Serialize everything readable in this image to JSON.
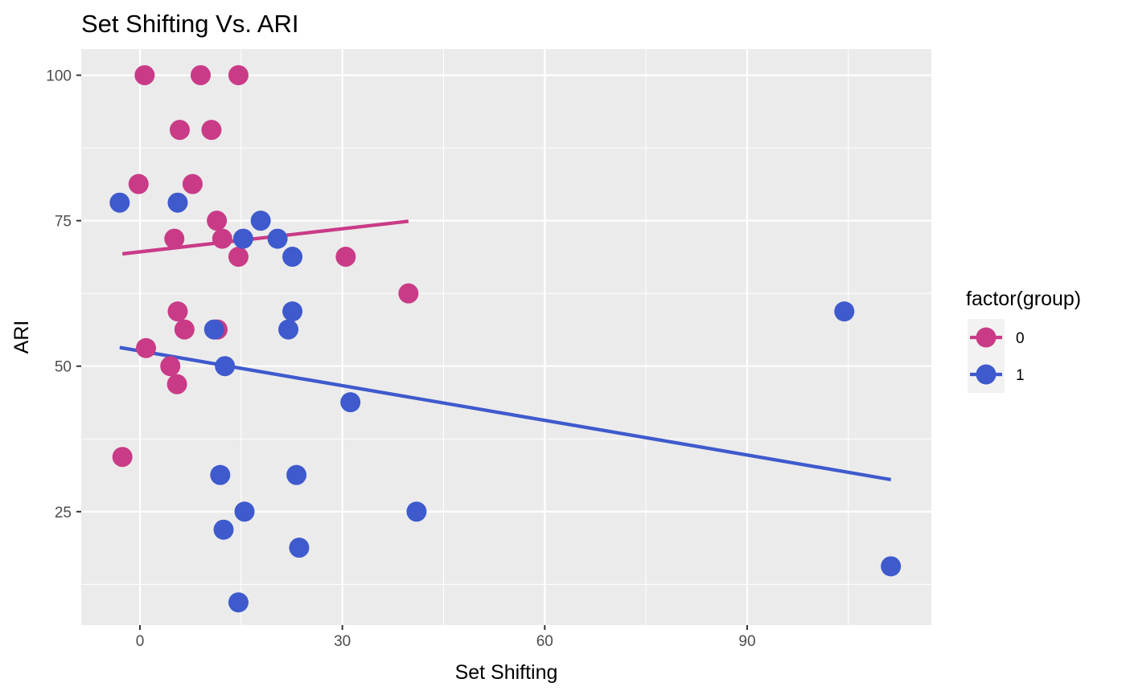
{
  "chart_data": {
    "type": "scatter",
    "title": "Set Shifting Vs. ARI",
    "xlabel": "Set Shifting",
    "ylabel": "ARI",
    "xlim": [
      -8.7,
      117.3
    ],
    "ylim": [
      5.5,
      104.5
    ],
    "x_ticks": [
      0,
      30,
      60,
      90
    ],
    "x_tick_labels": [
      "0",
      "30",
      "60",
      "90"
    ],
    "x_minor_ticks": [
      15,
      45,
      75,
      105
    ],
    "y_ticks": [
      25,
      50,
      75,
      100
    ],
    "y_tick_labels": [
      "25",
      "50",
      "75",
      "100"
    ],
    "y_minor_ticks": [
      12.5,
      37.5,
      62.5,
      87.5
    ],
    "grid": true,
    "legend": {
      "title": "factor(group)",
      "position": "right"
    },
    "series": [
      {
        "name": "0",
        "color": "#c93b87",
        "points": [
          {
            "x": 0.7,
            "y": 100
          },
          {
            "x": 9.0,
            "y": 100
          },
          {
            "x": 14.6,
            "y": 100
          },
          {
            "x": 5.9,
            "y": 90.6
          },
          {
            "x": 10.6,
            "y": 90.6
          },
          {
            "x": -0.2,
            "y": 81.3
          },
          {
            "x": 7.8,
            "y": 81.3
          },
          {
            "x": 11.4,
            "y": 75
          },
          {
            "x": 5.1,
            "y": 71.9
          },
          {
            "x": 12.2,
            "y": 71.9
          },
          {
            "x": 14.6,
            "y": 68.8
          },
          {
            "x": 30.5,
            "y": 68.8
          },
          {
            "x": 39.8,
            "y": 62.5
          },
          {
            "x": 5.6,
            "y": 59.4
          },
          {
            "x": 6.6,
            "y": 56.3
          },
          {
            "x": 11.5,
            "y": 56.3
          },
          {
            "x": 0.9,
            "y": 53.1
          },
          {
            "x": 4.5,
            "y": 50
          },
          {
            "x": 5.5,
            "y": 46.9
          },
          {
            "x": -2.6,
            "y": 34.4
          }
        ],
        "trend": {
          "x": [
            -2.6,
            39.8
          ],
          "y": [
            69.3,
            74.9
          ]
        }
      },
      {
        "name": "1",
        "color": "#3e5acd",
        "points": [
          {
            "x": -3.0,
            "y": 78.1
          },
          {
            "x": 5.6,
            "y": 78.1
          },
          {
            "x": 17.9,
            "y": 75
          },
          {
            "x": 15.3,
            "y": 71.9
          },
          {
            "x": 20.4,
            "y": 71.9
          },
          {
            "x": 22.6,
            "y": 68.8
          },
          {
            "x": 22.6,
            "y": 59.4
          },
          {
            "x": 104.4,
            "y": 59.4
          },
          {
            "x": 11.0,
            "y": 56.3
          },
          {
            "x": 22.0,
            "y": 56.3
          },
          {
            "x": 12.6,
            "y": 50
          },
          {
            "x": 31.2,
            "y": 43.8
          },
          {
            "x": 11.9,
            "y": 31.3
          },
          {
            "x": 23.2,
            "y": 31.3
          },
          {
            "x": 15.5,
            "y": 25
          },
          {
            "x": 41.0,
            "y": 25
          },
          {
            "x": 12.4,
            "y": 21.9
          },
          {
            "x": 23.6,
            "y": 18.8
          },
          {
            "x": 111.3,
            "y": 15.6
          },
          {
            "x": 14.6,
            "y": 9.4
          }
        ],
        "trend": {
          "x": [
            -3.0,
            111.3
          ],
          "y": [
            53.2,
            30.5
          ]
        }
      }
    ]
  }
}
